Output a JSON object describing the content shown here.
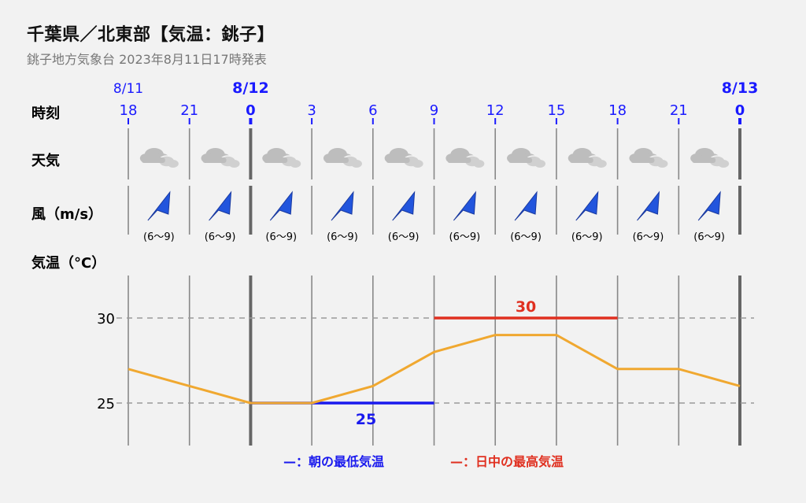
{
  "header": {
    "title": "千葉県／北東部【気温：銚子】",
    "subtitle": "銚子地方気象台 2023年8月11日17時発表"
  },
  "rows": {
    "time_label": "時刻",
    "weather_label": "天気",
    "wind_label": "風（m/s）",
    "temp_label": "気温（°C）"
  },
  "colors": {
    "date_blue": "#1a1aff",
    "min_line": "#1a1aee",
    "max_line": "#e03020",
    "temp_line": "#f0a830",
    "grid": "#888888",
    "arrow": "#2255dd"
  },
  "date_labels": [
    {
      "text": "8/11",
      "bold": false
    },
    {
      "text": "8/12",
      "bold": true
    },
    {
      "text": "8/13",
      "bold": true
    }
  ],
  "wind": {
    "direction": "northeast",
    "ranges": [
      "(6～9)",
      "(6～9)",
      "(6～9)",
      "(6～9)",
      "(6～9)",
      "(6～9)",
      "(6～9)",
      "(6～9)",
      "(6～9)",
      "(6～9)"
    ]
  },
  "weather": {
    "icons": [
      "cloud-icon",
      "cloud-icon",
      "cloud-icon",
      "cloud-icon",
      "cloud-icon",
      "cloud-icon",
      "cloud-icon",
      "cloud-icon",
      "cloud-icon",
      "cloud-icon"
    ]
  },
  "legend": {
    "min_label": "—：朝の最低気温",
    "max_label": "—：日中の最高気温"
  },
  "chart_data": {
    "type": "line",
    "x": [
      "18",
      "21",
      "0",
      "3",
      "6",
      "9",
      "12",
      "15",
      "18",
      "21",
      "0"
    ],
    "day_boundary_index": [
      2,
      10
    ],
    "series": [
      {
        "values": [
          27,
          26,
          25,
          25,
          26,
          28,
          29,
          29,
          27,
          27,
          26
        ]
      }
    ],
    "y_ticks": [
      "30",
      "25"
    ],
    "y_tick_values": [
      30,
      25
    ],
    "ylim": [
      22.5,
      32.5
    ],
    "min_temp": {
      "value": 25,
      "label": "25",
      "from_index": 2,
      "to_index": 5
    },
    "max_temp": {
      "value": 30,
      "label": "30",
      "from_index": 5,
      "to_index": 8
    }
  }
}
